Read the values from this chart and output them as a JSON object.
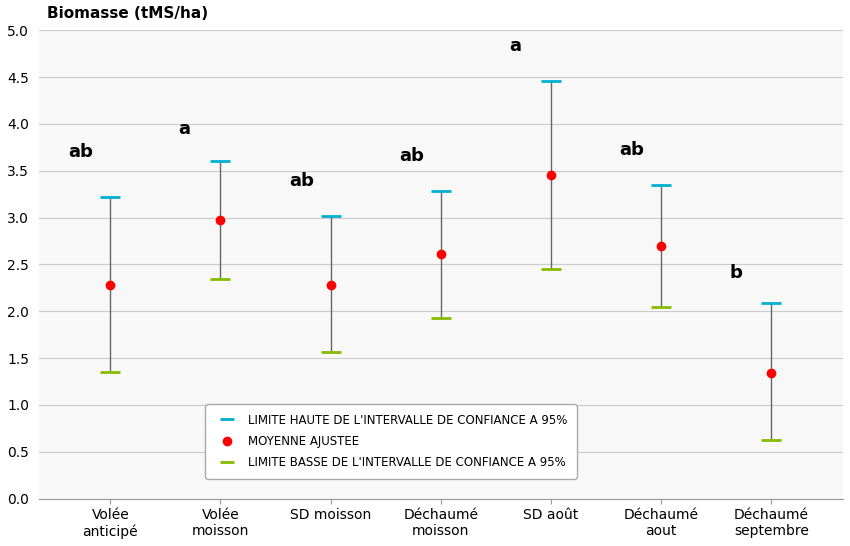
{
  "categories": [
    "Volée\nanticipé",
    "Volée\nmoisson",
    "SD moisson",
    "Déchaumé\nmoisson",
    "SD août",
    "Déchaumé\naout",
    "Déchaumé\nseptembre"
  ],
  "xtick_labels": [
    "Volée\nanticipé",
    "Volée\nmoisson",
    "SD moisson",
    "Déchaumé\nmoisson",
    "SD août",
    "Déchaumé\naout",
    "Déchaumé\nseptembre"
  ],
  "means": [
    2.28,
    2.97,
    2.28,
    2.61,
    3.45,
    2.7,
    1.34
  ],
  "ci_high": [
    3.22,
    3.6,
    3.02,
    3.28,
    4.46,
    3.35,
    2.09
  ],
  "ci_low": [
    1.35,
    2.34,
    1.56,
    1.93,
    2.45,
    2.05,
    0.62
  ],
  "labels": [
    "ab",
    "a",
    "ab",
    "ab",
    "a",
    "ab",
    "b"
  ],
  "label_y_offset": [
    0.38,
    0.25,
    0.28,
    0.28,
    0.28,
    0.28,
    0.22
  ],
  "ylabel": "Biomasse (tMS/ha)",
  "ylim": [
    0.0,
    5.0
  ],
  "yticks": [
    0.0,
    0.5,
    1.0,
    1.5,
    2.0,
    2.5,
    3.0,
    3.5,
    4.0,
    4.5,
    5.0
  ],
  "color_mean": "#ff0000",
  "color_ci_high": "#00b0d0",
  "color_ci_low": "#88bb00",
  "color_line": "#666666",
  "legend_ci_high": "LIMITE HAUTE DE L'INTERVALLE DE CONFIANCE A 95%",
  "legend_mean": "MOYENNE AJUSTEE",
  "legend_ci_low": "LIMITE BASSE DE L'INTERVALLE DE CONFIANCE A 95%",
  "background_color": "#ffffff",
  "plot_bg_color": "#f8f8f8",
  "grid_color": "#cccccc",
  "label_fontsize": 11,
  "annotation_fontsize": 13,
  "tick_fontsize": 10
}
